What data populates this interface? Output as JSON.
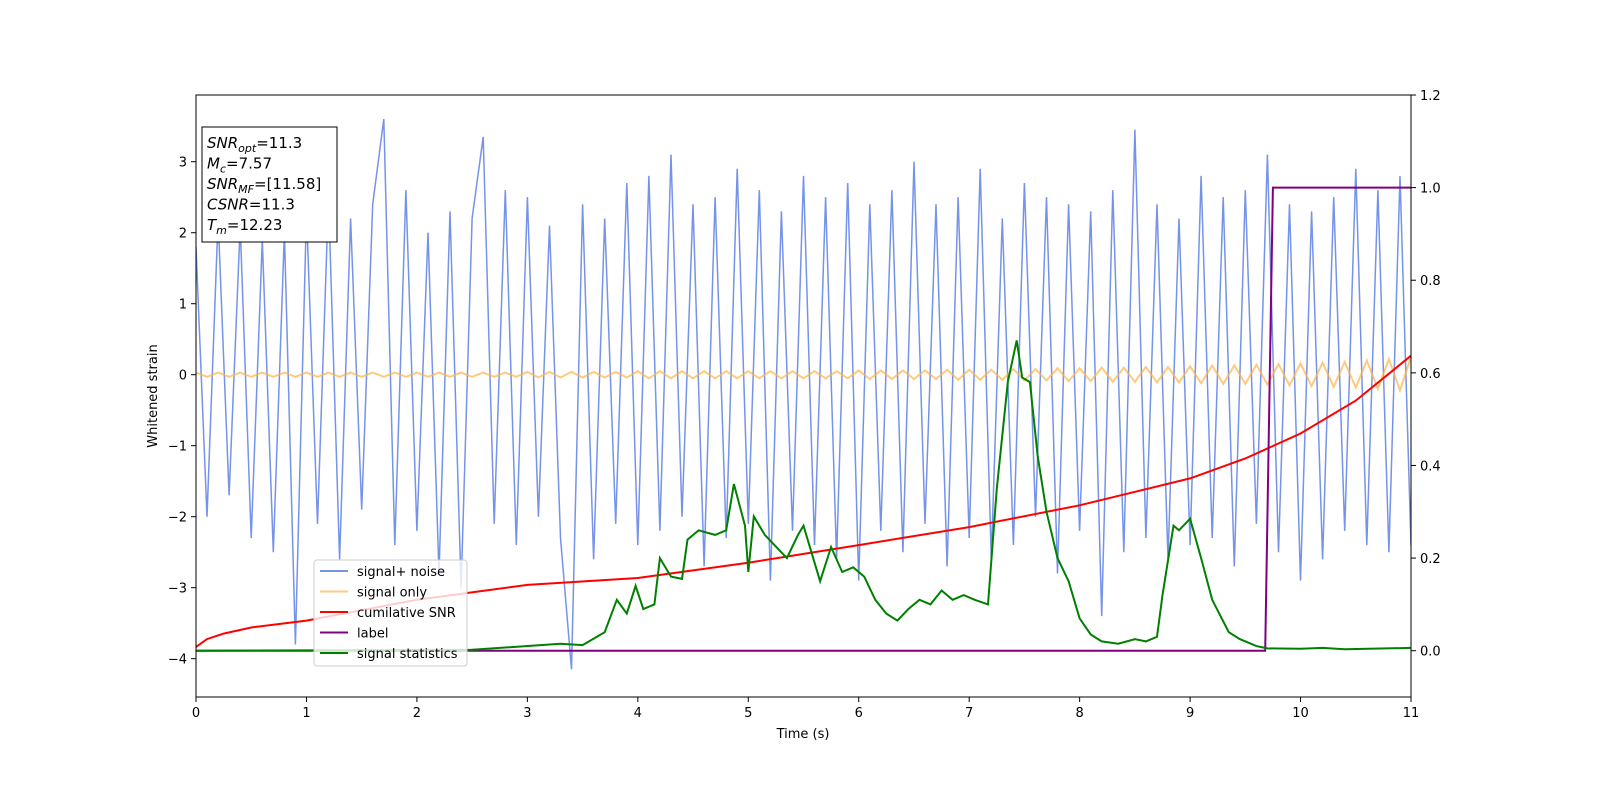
{
  "chart_data": {
    "type": "line",
    "xlabel": "Time (s)",
    "ylabel": "Whitened strain",
    "xlim": [
      0,
      11
    ],
    "xticks": [
      0,
      1,
      2,
      3,
      4,
      5,
      6,
      7,
      8,
      9,
      10,
      11
    ],
    "ylim": [
      -4.54,
      3.94
    ],
    "yticks": [
      {
        "value": -4,
        "label": "−4"
      },
      {
        "value": -3,
        "label": "−3"
      },
      {
        "value": -2,
        "label": "−2"
      },
      {
        "value": -1,
        "label": "−1"
      },
      0,
      1,
      2,
      3
    ],
    "y2lim": [
      -0.1,
      1.2
    ],
    "y2ticks": [
      {
        "value": 0,
        "label": "0.0"
      },
      0.2,
      0.4,
      0.6,
      0.8,
      {
        "value": 1,
        "label": "1.0"
      },
      1.2
    ],
    "annotation": [
      {
        "base": "SNR",
        "sub": "opt",
        "text": "=11.3"
      },
      {
        "base": "M",
        "sub": "c",
        "text": "=7.57"
      },
      {
        "base": "SNR",
        "sub": "MF",
        "text": "=[11.58]"
      },
      {
        "base": "CSNR",
        "text": "=11.3"
      },
      {
        "base": "T",
        "sub": "m",
        "text": "=12.23"
      }
    ],
    "legend": "lower left",
    "x": [
      0,
      0.1,
      0.2,
      0.3,
      0.4,
      0.5,
      0.6,
      0.7,
      0.8,
      0.9,
      1,
      1.1,
      1.2,
      1.3,
      1.4,
      1.5,
      1.6,
      1.7,
      1.8,
      1.9,
      2,
      2.1,
      2.2,
      2.3,
      2.4,
      2.5,
      2.6,
      2.7,
      2.8,
      2.9,
      3,
      3.1,
      3.2,
      3.3,
      3.4,
      3.5,
      3.6,
      3.7,
      3.8,
      3.9,
      4,
      4.1,
      4.2,
      4.3,
      4.4,
      4.5,
      4.6,
      4.7,
      4.8,
      4.9,
      5,
      5.1,
      5.2,
      5.3,
      5.4,
      5.5,
      5.6,
      5.7,
      5.8,
      5.9,
      6,
      6.1,
      6.2,
      6.3,
      6.4,
      6.5,
      6.6,
      6.7,
      6.8,
      6.9,
      7,
      7.1,
      7.2,
      7.3,
      7.4,
      7.5,
      7.6,
      7.7,
      7.8,
      7.9,
      8,
      8.1,
      8.2,
      8.3,
      8.4,
      8.5,
      8.6,
      8.7,
      8.8,
      8.9,
      9,
      9.1,
      9.2,
      9.3,
      9.4,
      9.5,
      9.6,
      9.7,
      9.8,
      9.9,
      10,
      10.1,
      10.2,
      10.3,
      10.4,
      10.5,
      10.6,
      10.7,
      10.8,
      10.9,
      11
    ],
    "series": [
      {
        "name": "signal+ noise",
        "color": "#7593e8",
        "values": [
          1.8,
          -2.0,
          2.2,
          -1.7,
          2.1,
          -2.3,
          1.9,
          -2.5,
          2.0,
          -3.8,
          2.3,
          -2.1,
          2.5,
          -2.6,
          2.2,
          -1.9,
          2.4,
          3.6,
          -2.4,
          2.6,
          -2.2,
          2.0,
          -2.8,
          2.3,
          -3.0,
          2.2,
          3.35,
          -2.1,
          2.6,
          -2.4,
          2.5,
          -2.0,
          2.1,
          -2.3,
          -4.15,
          2.4,
          -2.6,
          2.2,
          -2.1,
          2.7,
          -2.4,
          2.8,
          -2.2,
          3.1,
          -2.0,
          2.4,
          -2.7,
          2.5,
          -2.3,
          2.9,
          -2.1,
          2.6,
          -2.9,
          2.3,
          -2.2,
          2.8,
          -2.4,
          2.5,
          -2.6,
          2.7,
          -2.9,
          2.4,
          -2.2,
          2.6,
          -2.5,
          3.0,
          -2.1,
          2.4,
          -2.7,
          2.5,
          -2.3,
          2.9,
          -2.6,
          2.2,
          -2.4,
          2.7,
          -2.0,
          2.5,
          -2.8,
          2.4,
          -2.2,
          2.3,
          -3.4,
          2.6,
          -2.5,
          3.45,
          -2.3,
          2.4,
          -2.6,
          2.2,
          -2.4,
          2.8,
          -2.3,
          2.5,
          -2.7,
          2.6,
          -2.1,
          3.1,
          -2.5,
          2.4,
          -2.9,
          2.3,
          -2.6,
          2.5,
          -2.2,
          2.9,
          -2.4,
          2.6,
          -2.5,
          2.8,
          -2.4
        ]
      },
      {
        "name": "signal only",
        "color": "#ffb347",
        "values": [
          0.03,
          -0.03,
          0.03,
          -0.03,
          0.03,
          -0.03,
          0.03,
          -0.03,
          0.03,
          -0.03,
          0.03,
          -0.03,
          0.03,
          -0.03,
          0.03,
          -0.03,
          0.03,
          -0.03,
          0.03,
          -0.03,
          0.03,
          -0.03,
          0.03,
          -0.03,
          0.03,
          -0.03,
          0.03,
          -0.03,
          0.03,
          -0.03,
          0.04,
          -0.04,
          0.04,
          -0.04,
          0.04,
          -0.04,
          0.04,
          -0.04,
          0.04,
          -0.04,
          0.05,
          -0.05,
          0.05,
          -0.05,
          0.05,
          -0.05,
          0.05,
          -0.05,
          0.05,
          -0.05,
          0.05,
          -0.05,
          0.05,
          -0.05,
          0.05,
          -0.05,
          0.05,
          -0.05,
          0.05,
          -0.05,
          0.06,
          -0.06,
          0.06,
          -0.06,
          0.06,
          -0.06,
          0.06,
          -0.06,
          0.07,
          -0.07,
          0.07,
          -0.07,
          0.07,
          -0.07,
          0.08,
          -0.08,
          0.08,
          -0.08,
          0.09,
          -0.09,
          0.09,
          -0.09,
          0.1,
          -0.1,
          0.1,
          -0.1,
          0.11,
          -0.11,
          0.11,
          -0.11,
          0.12,
          -0.12,
          0.13,
          -0.13,
          0.13,
          -0.13,
          0.14,
          -0.14,
          0.15,
          -0.15,
          0.16,
          -0.16,
          0.17,
          -0.17,
          0.18,
          -0.18,
          0.2,
          -0.2,
          0.22,
          -0.22,
          0.25
        ]
      },
      {
        "name": "cumilative SNR",
        "color": "#ff0000",
        "axis": "y2",
        "x": [
          0,
          0.1,
          0.25,
          0.5,
          1,
          2,
          3,
          4,
          5,
          6,
          7,
          8,
          9,
          9.5,
          10,
          10.5,
          11
        ],
        "values": [
          0.008,
          0.025,
          0.037,
          0.05,
          0.065,
          0.11,
          0.142,
          0.157,
          0.19,
          0.228,
          0.267,
          0.314,
          0.372,
          0.415,
          0.469,
          0.54,
          0.637
        ]
      },
      {
        "name": "label",
        "color": "#800080",
        "axis": "y2",
        "x": [
          0,
          9.68,
          9.75,
          11
        ],
        "values": [
          0,
          0,
          1,
          1
        ]
      },
      {
        "name": "signal statistics",
        "color": "#008000",
        "axis": "y2",
        "x": [
          0,
          2.5,
          3.3,
          3.5,
          3.7,
          3.81,
          3.9,
          3.98,
          4.05,
          4.15,
          4.2,
          4.3,
          4.4,
          4.45,
          4.55,
          4.7,
          4.8,
          4.87,
          4.97,
          5.0,
          5.05,
          5.15,
          5.35,
          5.45,
          5.5,
          5.65,
          5.75,
          5.85,
          5.95,
          6.05,
          6.15,
          6.25,
          6.35,
          6.45,
          6.55,
          6.65,
          6.75,
          6.85,
          6.95,
          7.05,
          7.17,
          7.25,
          7.35,
          7.43,
          7.48,
          7.55,
          7.62,
          7.7,
          7.8,
          7.9,
          8.0,
          8.1,
          8.2,
          8.35,
          8.5,
          8.6,
          8.7,
          8.75,
          8.85,
          8.9,
          9.0,
          9.1,
          9.2,
          9.35,
          9.45,
          9.6,
          9.7,
          10.0,
          10.2,
          10.4,
          11
        ],
        "values": [
          0.0,
          0.002,
          0.015,
          0.012,
          0.04,
          0.11,
          0.08,
          0.14,
          0.09,
          0.1,
          0.2,
          0.16,
          0.155,
          0.24,
          0.26,
          0.25,
          0.26,
          0.36,
          0.27,
          0.17,
          0.29,
          0.25,
          0.2,
          0.25,
          0.27,
          0.15,
          0.224,
          0.17,
          0.18,
          0.16,
          0.11,
          0.08,
          0.065,
          0.09,
          0.11,
          0.1,
          0.13,
          0.11,
          0.12,
          0.11,
          0.1,
          0.35,
          0.58,
          0.67,
          0.59,
          0.58,
          0.42,
          0.3,
          0.2,
          0.15,
          0.07,
          0.035,
          0.02,
          0.015,
          0.025,
          0.02,
          0.03,
          0.12,
          0.27,
          0.26,
          0.285,
          0.2,
          0.11,
          0.04,
          0.025,
          0.01,
          0.005,
          0.004,
          0.006,
          0.003,
          0.006
        ]
      }
    ]
  }
}
